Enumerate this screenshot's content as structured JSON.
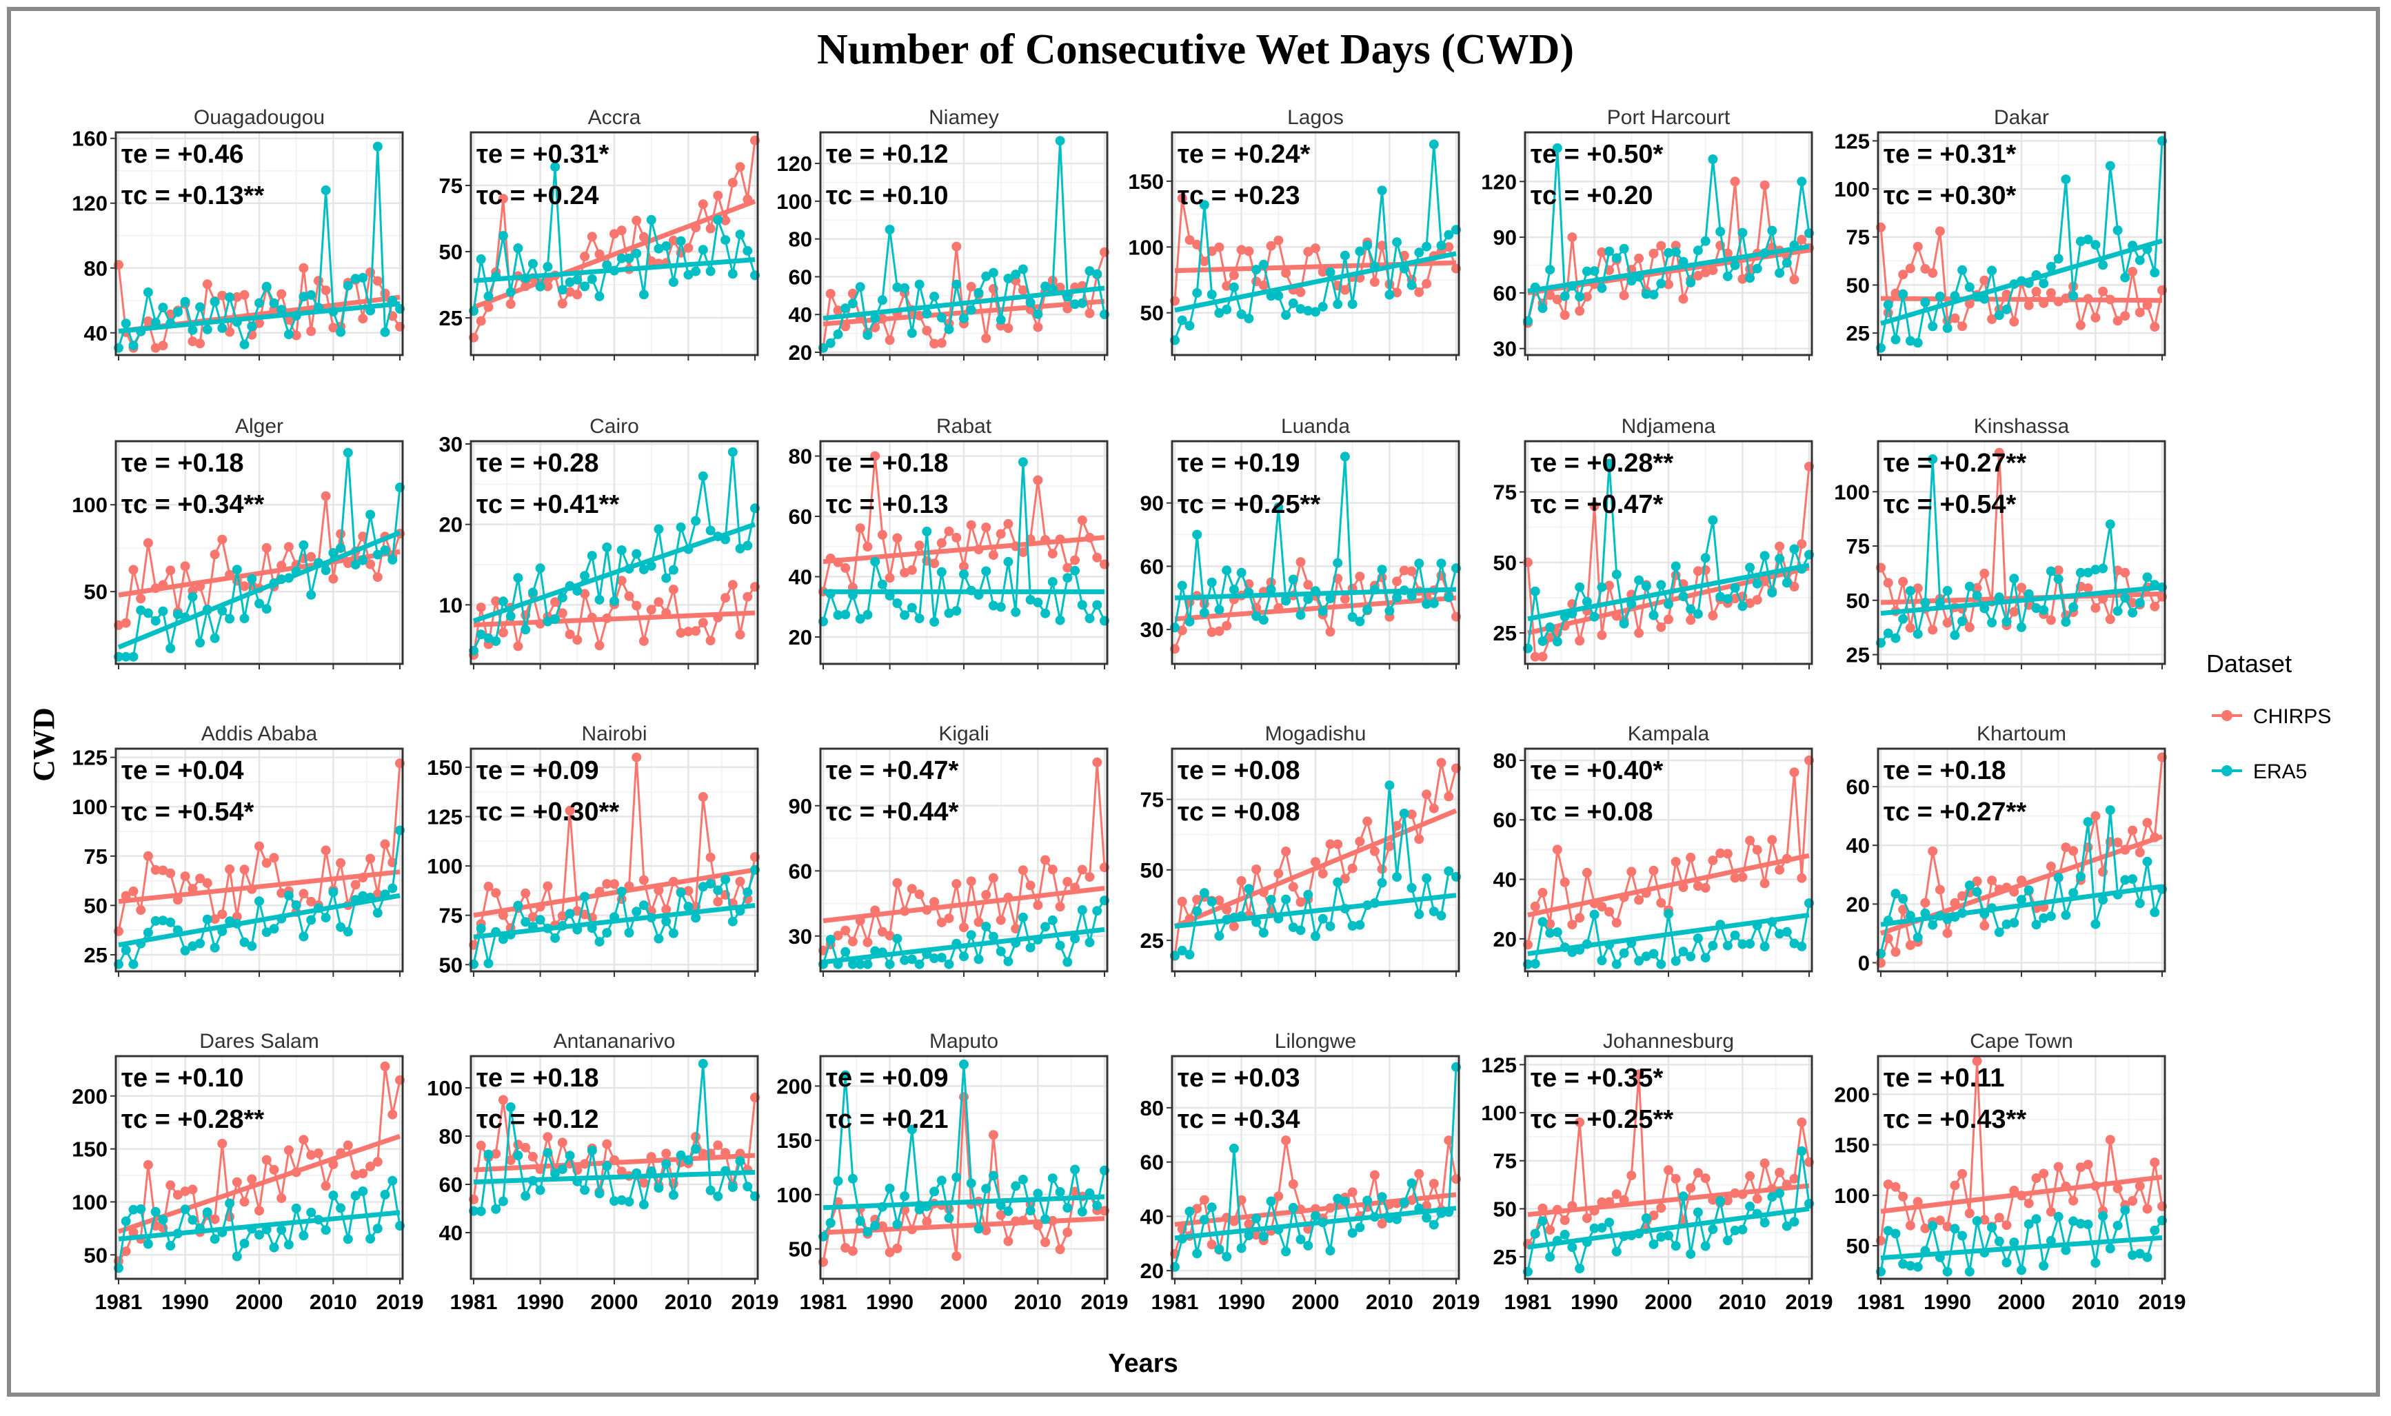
{
  "chart_data": {
    "type": "line",
    "title": "Number of Consecutive Wet Days  (CWD)",
    "xlabel": "Years",
    "ylabel": "CWD",
    "x_ticks": [
      1981,
      1990,
      2000,
      2010,
      2019
    ],
    "x_range": [
      1981,
      2019
    ],
    "legend": {
      "title": "Dataset",
      "position": "right",
      "entries": [
        {
          "name": "CHIRPS",
          "color": "#F8766D"
        },
        {
          "name": "ERA5",
          "color": "#00BFC4"
        }
      ]
    },
    "panels": [
      {
        "city": "Ouagadougou",
        "te": "τe = +0.46",
        "tc": "τc = +0.13**",
        "yticks": [
          40,
          80,
          120,
          160
        ],
        "ylim": [
          28,
          162
        ],
        "chirps_trend": [
          41,
          62
        ],
        "era5_trend": [
          41,
          58
        ],
        "chirps_peaks": [
          [
            1981,
            82
          ],
          [
            1993,
            70
          ],
          [
            2006,
            80
          ],
          [
            2016,
            72
          ]
        ],
        "era5_peaks": [
          [
            2009,
            128
          ],
          [
            2016,
            155
          ],
          [
            1985,
            65
          ]
        ]
      },
      {
        "city": "Accra",
        "te": "τe = +0.31*",
        "tc": "τc = +0.24",
        "yticks": [
          25,
          50,
          75
        ],
        "ylim": [
          12,
          94
        ],
        "chirps_trend": [
          29,
          69
        ],
        "era5_trend": [
          39,
          47
        ],
        "chirps_peaks": [
          [
            1985,
            70
          ],
          [
            2017,
            82
          ],
          [
            2019,
            92
          ],
          [
            2001,
            58
          ]
        ],
        "era5_peaks": [
          [
            1985,
            56
          ],
          [
            1992,
            82
          ],
          [
            2005,
            62
          ],
          [
            2014,
            62
          ]
        ]
      },
      {
        "city": "Niamey",
        "te": "τe = +0.12",
        "tc": "τc = +0.10",
        "yticks": [
          20,
          40,
          60,
          80,
          100,
          120
        ],
        "ylim": [
          20,
          135
        ],
        "chirps_trend": [
          35,
          47
        ],
        "era5_trend": [
          38,
          54
        ],
        "chirps_peaks": [
          [
            1999,
            76
          ],
          [
            2019,
            73
          ],
          [
            2012,
            58
          ]
        ],
        "era5_peaks": [
          [
            1990,
            85
          ],
          [
            2013,
            132
          ],
          [
            2008,
            64
          ]
        ]
      },
      {
        "city": "Lagos",
        "te": "τe = +0.24*",
        "tc": "τc = +0.23",
        "yticks": [
          50,
          100,
          150
        ],
        "ylim": [
          20,
          185
        ],
        "chirps_trend": [
          82,
          88
        ],
        "era5_trend": [
          52,
          95
        ],
        "chirps_peaks": [
          [
            1982,
            137
          ],
          [
            1995,
            105
          ],
          [
            2018,
            100
          ]
        ],
        "era5_peaks": [
          [
            1985,
            132
          ],
          [
            2009,
            143
          ],
          [
            2016,
            178
          ]
        ]
      },
      {
        "city": "Port Harcourt",
        "te": "τe = +0.50*",
        "tc": "τc = +0.20",
        "yticks": [
          30,
          60,
          90,
          120
        ],
        "ylim": [
          28,
          145
        ],
        "chirps_trend": [
          60,
          83
        ],
        "era5_trend": [
          61,
          85
        ],
        "chirps_peaks": [
          [
            1987,
            90
          ],
          [
            2009,
            120
          ],
          [
            2013,
            118
          ]
        ],
        "era5_peaks": [
          [
            1985,
            138
          ],
          [
            2006,
            132
          ],
          [
            2018,
            120
          ]
        ]
      },
      {
        "city": "Dakar",
        "te": "τe = +0.31*",
        "tc": "τc = +0.30*",
        "yticks": [
          25,
          50,
          75,
          100,
          125
        ],
        "ylim": [
          15,
          128
        ],
        "chirps_trend": [
          43,
          42
        ],
        "era5_trend": [
          30,
          73
        ],
        "chirps_peaks": [
          [
            1981,
            80
          ],
          [
            1986,
            70
          ],
          [
            1989,
            78
          ]
        ],
        "era5_peaks": [
          [
            2006,
            105
          ],
          [
            2012,
            112
          ],
          [
            2019,
            125
          ]
        ]
      },
      {
        "city": "Alger",
        "te": "τe = +0.18",
        "tc": "τc = +0.34**",
        "yticks": [
          50,
          100
        ],
        "ylim": [
          10,
          135
        ],
        "chirps_trend": [
          48,
          73
        ],
        "era5_trend": [
          18,
          84
        ],
        "chirps_peaks": [
          [
            1985,
            78
          ],
          [
            1995,
            80
          ],
          [
            2009,
            105
          ]
        ],
        "era5_peaks": [
          [
            2012,
            130
          ],
          [
            2019,
            110
          ]
        ]
      },
      {
        "city": "Cairo",
        "te": "τe = +0.28",
        "tc": "τc = +0.41**",
        "yticks": [
          10,
          20,
          30
        ],
        "ylim": [
          3,
          30
        ],
        "chirps_trend": [
          7.5,
          9
        ],
        "era5_trend": [
          8,
          20
        ],
        "chirps_peaks": [
          [
            2001,
            13
          ],
          [
            2018,
            11
          ]
        ],
        "era5_peaks": [
          [
            2012,
            26
          ],
          [
            2016,
            29
          ],
          [
            2019,
            22
          ]
        ]
      },
      {
        "city": "Rabat",
        "te": "τe = +0.18",
        "tc": "τc = +0.13",
        "yticks": [
          20,
          40,
          60,
          80
        ],
        "ylim": [
          12,
          84
        ],
        "chirps_trend": [
          45,
          53
        ],
        "era5_trend": [
          35,
          35
        ],
        "chirps_peaks": [
          [
            1988,
            80
          ],
          [
            2010,
            72
          ]
        ],
        "era5_peaks": [
          [
            2008,
            78
          ],
          [
            1995,
            55
          ]
        ]
      },
      {
        "city": "Luanda",
        "te": "τe = +0.19",
        "tc": "τc = +0.25**",
        "yticks": [
          30,
          60,
          90
        ],
        "ylim": [
          15,
          118
        ],
        "chirps_trend": [
          35,
          45
        ],
        "era5_trend": [
          45,
          49
        ],
        "chirps_peaks": [
          [
            1998,
            62
          ],
          [
            2012,
            58
          ]
        ],
        "era5_peaks": [
          [
            1984,
            75
          ],
          [
            1995,
            88
          ],
          [
            2004,
            112
          ]
        ]
      },
      {
        "city": "Ndjamena",
        "te": "τe = +0.28**",
        "tc": "τc = +0.47*",
        "yticks": [
          25,
          50,
          75
        ],
        "ylim": [
          15,
          92
        ],
        "chirps_trend": [
          25,
          48
        ],
        "era5_trend": [
          30,
          49
        ],
        "chirps_peaks": [
          [
            1981,
            50
          ],
          [
            1990,
            70
          ],
          [
            2019,
            84
          ]
        ],
        "era5_peaks": [
          [
            1992,
            85
          ],
          [
            2006,
            65
          ]
        ]
      },
      {
        "city": "Kinshassa",
        "te": "τe = +0.27**",
        "tc": "τc = +0.54*",
        "yticks": [
          25,
          50,
          75,
          100
        ],
        "ylim": [
          22,
          122
        ],
        "chirps_trend": [
          49,
          53
        ],
        "era5_trend": [
          44,
          56
        ],
        "chirps_peaks": [
          [
            1981,
            65
          ],
          [
            1997,
            118
          ]
        ],
        "era5_peaks": [
          [
            1988,
            115
          ],
          [
            2012,
            85
          ]
        ]
      },
      {
        "city": "Addis Ababa",
        "te": "τe = +0.04",
        "tc": "τc = +0.54*",
        "yticks": [
          25,
          50,
          75,
          100,
          125
        ],
        "ylim": [
          18,
          128
        ],
        "chirps_trend": [
          52,
          67
        ],
        "era5_trend": [
          30,
          55
        ],
        "chirps_peaks": [
          [
            1985,
            75
          ],
          [
            2000,
            80
          ],
          [
            2019,
            122
          ]
        ],
        "era5_peaks": [
          [
            2019,
            88
          ]
        ]
      },
      {
        "city": "Nairobi",
        "te": "τe = +0.09",
        "tc": "τc = +0.30**",
        "yticks": [
          50,
          75,
          100,
          125,
          150
        ],
        "ylim": [
          48,
          158
        ],
        "chirps_trend": [
          75,
          98
        ],
        "era5_trend": [
          64,
          80
        ],
        "chirps_peaks": [
          [
            1994,
            128
          ],
          [
            2003,
            155
          ],
          [
            2012,
            135
          ]
        ],
        "era5_peaks": [
          [
            2019,
            98
          ]
        ]
      },
      {
        "city": "Kigali",
        "te": "τe = +0.47*",
        "tc": "τc = +0.44*",
        "yticks": [
          30,
          60,
          90
        ],
        "ylim": [
          15,
          115
        ],
        "chirps_trend": [
          37,
          52
        ],
        "era5_trend": [
          18,
          33
        ],
        "chirps_peaks": [
          [
            2018,
            110
          ],
          [
            2011,
            65
          ]
        ],
        "era5_peaks": [
          [
            2016,
            42
          ]
        ]
      },
      {
        "city": "Mogadishu",
        "te": "τe = +0.08",
        "tc": "τc = +0.08",
        "yticks": [
          25,
          50,
          75
        ],
        "ylim": [
          15,
          92
        ],
        "chirps_trend": [
          30,
          71
        ],
        "era5_trend": [
          30,
          41
        ],
        "chirps_peaks": [
          [
            2017,
            88
          ],
          [
            2019,
            86
          ],
          [
            2012,
            70
          ]
        ],
        "era5_peaks": [
          [
            2010,
            80
          ],
          [
            2012,
            70
          ]
        ]
      },
      {
        "city": "Kampala",
        "te": "τe = +0.40*",
        "tc": "τc = +0.08",
        "yticks": [
          20,
          40,
          60,
          80
        ],
        "ylim": [
          10,
          83
        ],
        "chirps_trend": [
          28,
          48
        ],
        "era5_trend": [
          15,
          28
        ],
        "chirps_peaks": [
          [
            1985,
            50
          ],
          [
            2017,
            76
          ],
          [
            2019,
            80
          ]
        ],
        "era5_peaks": [
          [
            2019,
            32
          ]
        ]
      },
      {
        "city": "Khartoum",
        "te": "τe = +0.18",
        "tc": "τc = +0.27**",
        "yticks": [
          0,
          20,
          40,
          60
        ],
        "ylim": [
          -2,
          72
        ],
        "chirps_trend": [
          10,
          43
        ],
        "era5_trend": [
          13,
          26
        ],
        "chirps_peaks": [
          [
            1988,
            38
          ],
          [
            2019,
            70
          ],
          [
            2010,
            50
          ]
        ],
        "era5_peaks": [
          [
            2012,
            52
          ],
          [
            2009,
            48
          ]
        ]
      },
      {
        "city": "Dares Salam",
        "te": "τe = +0.10",
        "tc": "τc = +0.28**",
        "yticks": [
          50,
          100,
          150,
          200
        ],
        "ylim": [
          30,
          235
        ],
        "chirps_trend": [
          72,
          162
        ],
        "era5_trend": [
          65,
          90
        ],
        "chirps_peaks": [
          [
            1985,
            135
          ],
          [
            1995,
            155
          ],
          [
            2017,
            228
          ],
          [
            2019,
            215
          ]
        ],
        "era5_peaks": [
          [
            2018,
            120
          ]
        ]
      },
      {
        "city": "Antananarivo",
        "te": "τe = +0.18",
        "tc": "τc = +0.12",
        "yticks": [
          40,
          60,
          80,
          100
        ],
        "ylim": [
          22,
          112
        ],
        "chirps_trend": [
          66,
          72
        ],
        "era5_trend": [
          61,
          65
        ],
        "chirps_peaks": [
          [
            1985,
            95
          ],
          [
            2019,
            96
          ]
        ],
        "era5_peaks": [
          [
            1986,
            92
          ],
          [
            2012,
            110
          ]
        ]
      },
      {
        "city": "Maputo",
        "te": "τe = +0.09",
        "tc": "τc = +0.21",
        "yticks": [
          50,
          100,
          150,
          200
        ],
        "ylim": [
          25,
          225
        ],
        "chirps_trend": [
          65,
          78
        ],
        "era5_trend": [
          88,
          98
        ],
        "chirps_peaks": [
          [
            2000,
            190
          ],
          [
            2004,
            155
          ]
        ],
        "era5_peaks": [
          [
            1984,
            210
          ],
          [
            2000,
            220
          ],
          [
            1993,
            160
          ]
        ]
      },
      {
        "city": "Lilongwe",
        "te": "τe = +0.03",
        "tc": "τc = +0.34",
        "yticks": [
          20,
          40,
          60,
          80
        ],
        "ylim": [
          18,
          98
        ],
        "chirps_trend": [
          37,
          48
        ],
        "era5_trend": [
          32,
          43
        ],
        "chirps_peaks": [
          [
            1996,
            68
          ],
          [
            2018,
            68
          ]
        ],
        "era5_peaks": [
          [
            1989,
            65
          ],
          [
            2019,
            95
          ]
        ]
      },
      {
        "city": "Johannesburg",
        "te": "τe = +0.35*",
        "tc": "τc = +0.25**",
        "yticks": [
          25,
          50,
          75,
          100,
          125
        ],
        "ylim": [
          15,
          128
        ],
        "chirps_trend": [
          47,
          62
        ],
        "era5_trend": [
          30,
          50
        ],
        "chirps_peaks": [
          [
            1996,
            120
          ],
          [
            1988,
            95
          ],
          [
            2018,
            95
          ]
        ],
        "era5_peaks": [
          [
            2018,
            80
          ]
        ]
      },
      {
        "city": "Cape Town",
        "te": "τe = +0.11",
        "tc": "τc = +0.43**",
        "yticks": [
          50,
          100,
          150,
          200
        ],
        "ylim": [
          20,
          235
        ],
        "chirps_trend": [
          84,
          118
        ],
        "era5_trend": [
          38,
          58
        ],
        "chirps_peaks": [
          [
            1994,
            235
          ],
          [
            2012,
            155
          ]
        ],
        "era5_peaks": [
          [
            2019,
            75
          ]
        ]
      }
    ]
  }
}
